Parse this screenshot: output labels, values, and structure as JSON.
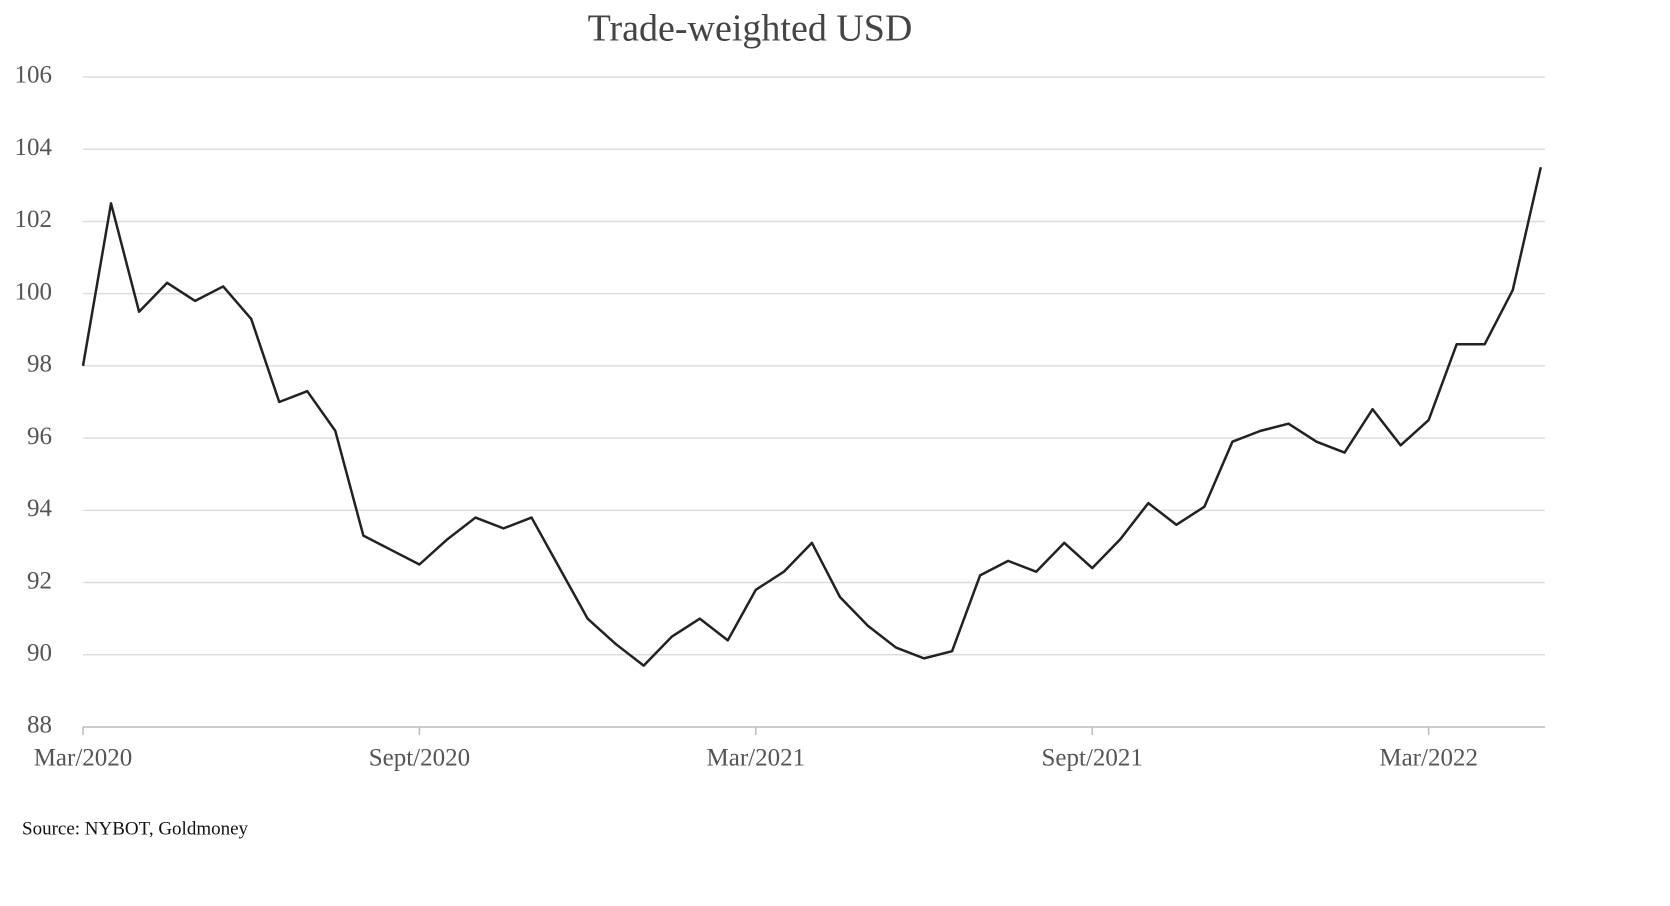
{
  "chart_data": {
    "type": "line",
    "title": "Trade-weighted USD",
    "source": "Source: NYBOT, Goldmoney",
    "color": "#222222",
    "categories": [
      "Mar/2020",
      null,
      null,
      null,
      null,
      null,
      null,
      null,
      null,
      null,
      null,
      null,
      "Sept/2020",
      null,
      null,
      null,
      null,
      null,
      null,
      null,
      null,
      null,
      null,
      null,
      "Mar/2021",
      null,
      null,
      null,
      null,
      null,
      null,
      null,
      null,
      null,
      null,
      null,
      "Sept/2021",
      null,
      null,
      null,
      null,
      null,
      null,
      null,
      null,
      null,
      null,
      null,
      "Mar/2022",
      null,
      null,
      null,
      null
    ],
    "values": [
      98,
      102.5,
      99.5,
      100.3,
      99.8,
      100.2,
      99.3,
      97,
      97.3,
      96.2,
      93.3,
      92.9,
      92.5,
      93.2,
      93.8,
      93.5,
      93.8,
      92.4,
      91,
      90.3,
      89.7,
      90.5,
      91.0,
      90.4,
      91.8,
      92.3,
      93.1,
      91.6,
      90.8,
      90.2,
      89.9,
      90.1,
      92.2,
      92.6,
      92.3,
      93.1,
      92.4,
      93.2,
      94.2,
      93.6,
      94.1,
      95.9,
      96.2,
      96.4,
      95.9,
      95.6,
      96.8,
      95.8,
      96.5,
      98.6,
      98.6,
      100.1,
      103.5
    ],
    "ylim": [
      88,
      106
    ],
    "yticks": [
      88,
      90,
      92,
      94,
      96,
      98,
      100,
      102,
      104,
      106
    ],
    "grid": true
  }
}
